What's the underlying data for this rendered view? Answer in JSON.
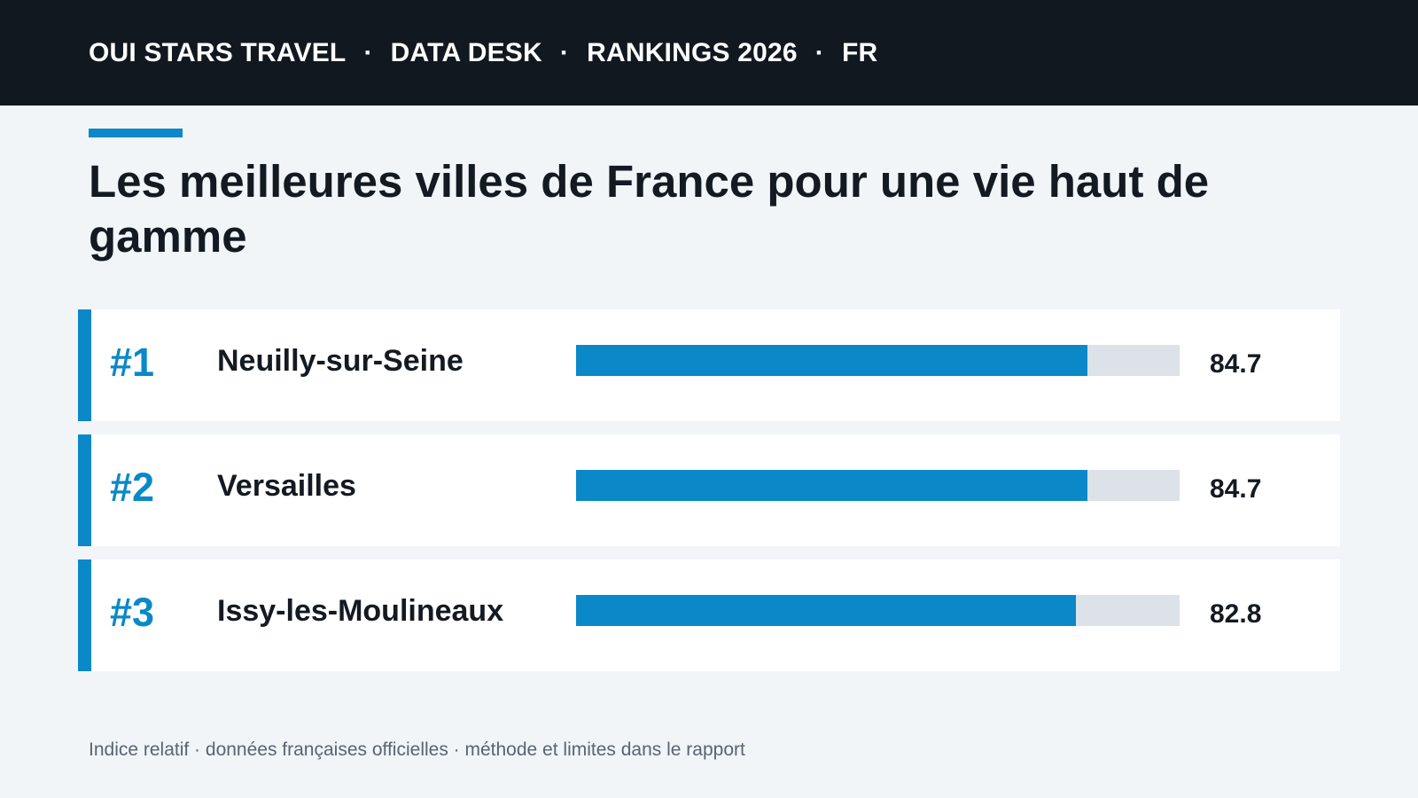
{
  "header": {
    "brand": "OUI STARS TRAVEL",
    "section": "DATA DESK",
    "edition": "RANKINGS 2026",
    "locale": "FR",
    "separator": "·"
  },
  "title": "Les meilleures villes de France pour une vie haut de gamme",
  "footnote": "Indice relatif · données françaises officielles · méthode et limites dans le rapport",
  "colors": {
    "accent": "#0a88c8",
    "track": "#dce2e8",
    "header_bg": "#121820",
    "page_bg": "#f1f5f8"
  },
  "chart_data": {
    "type": "bar",
    "orientation": "horizontal",
    "ranks": [
      "#1",
      "#2",
      "#3"
    ],
    "categories": [
      "Neuilly-sur-Seine",
      "Versailles",
      "Issy-les-Moulineaux"
    ],
    "values": [
      84.7,
      84.7,
      82.8
    ],
    "value_labels": [
      "84.7",
      "84.7",
      "82.8"
    ],
    "xlim": [
      0,
      100
    ],
    "grid": false,
    "legend": "none"
  }
}
